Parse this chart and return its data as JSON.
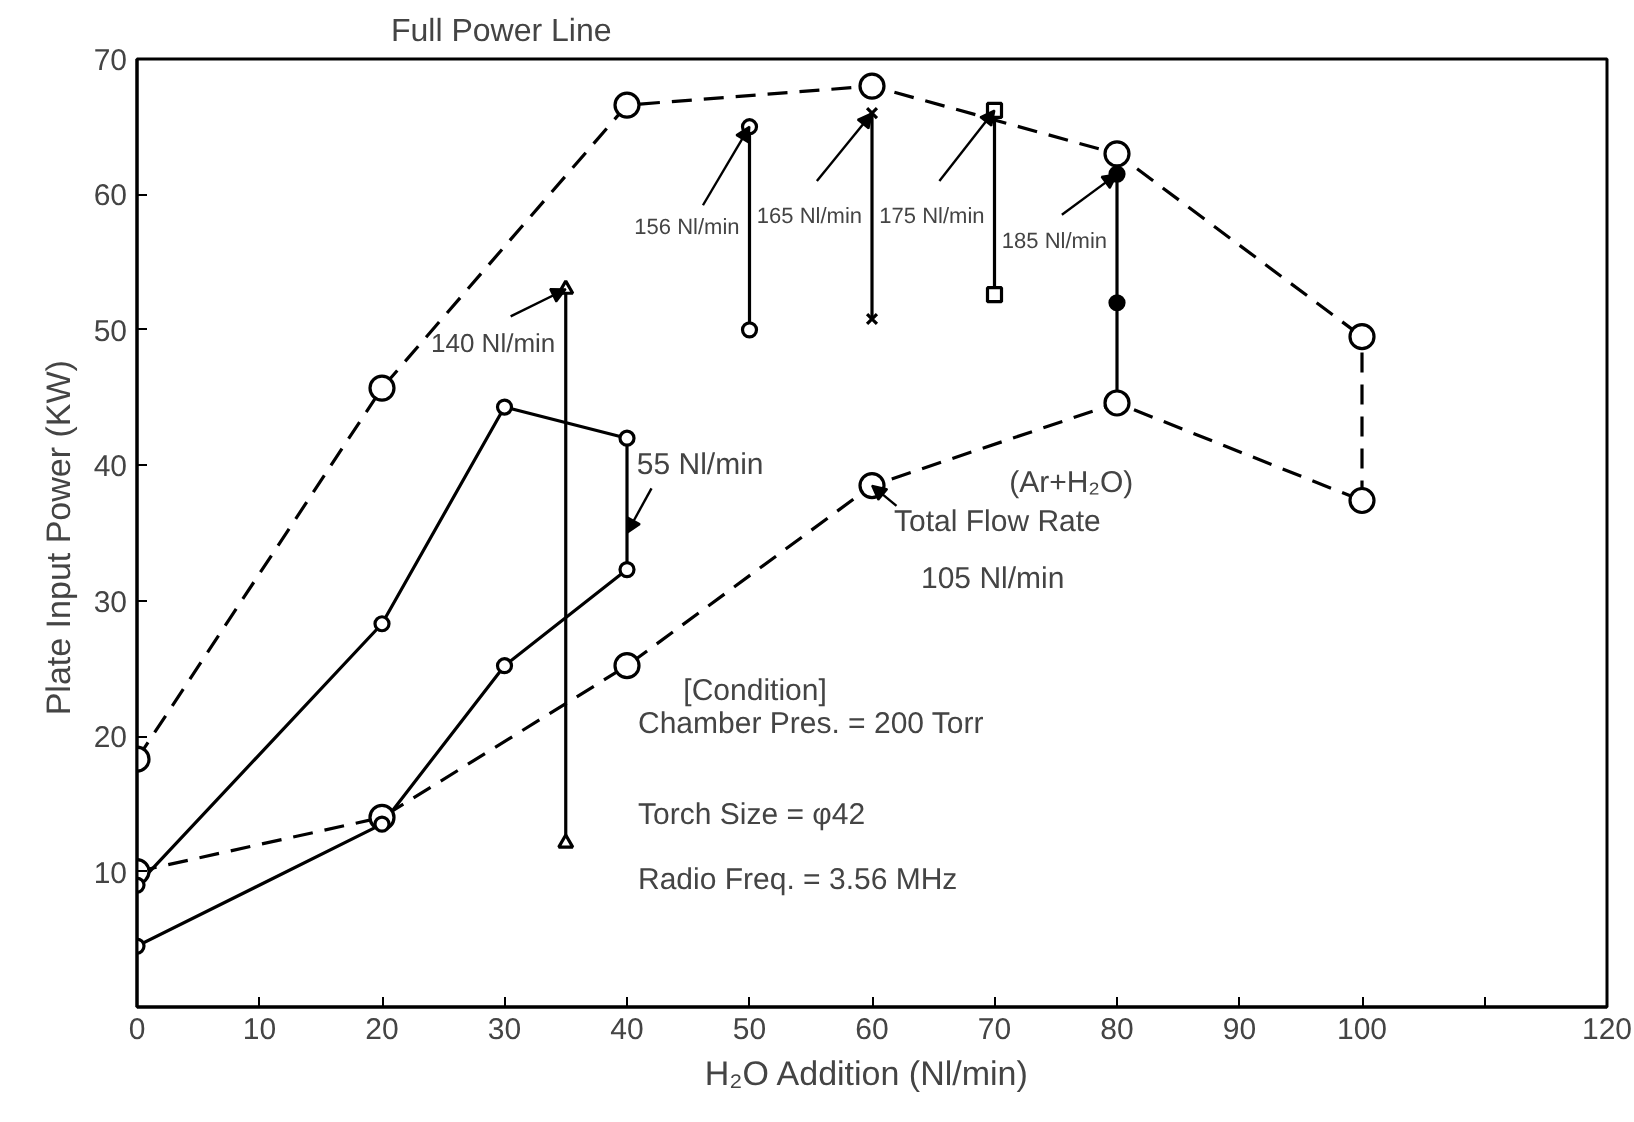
{
  "chart_data": {
    "type": "line",
    "xlabel": "H₂O Addition  (Nl/min)",
    "ylabel": "Plate Input Power  (KW)",
    "xlim": [
      0,
      120
    ],
    "ylim": [
      0,
      70
    ],
    "xticks": [
      0,
      10,
      20,
      30,
      40,
      50,
      60,
      70,
      80,
      90,
      100,
      {
        "value": 110,
        "label": null
      },
      120
    ],
    "yticks": [
      10,
      20,
      30,
      40,
      50,
      60,
      70
    ],
    "grid": false,
    "series": [
      {
        "name": "Full Power Line",
        "color": "#000000",
        "x": [
          0,
          20,
          40,
          60,
          80,
          100
        ],
        "values": [
          18.3,
          45.7,
          66.6,
          68,
          63,
          49.5
        ],
        "line_style": "dashed",
        "marker": "circle"
      },
      {
        "color": "#000000",
        "x": [
          0,
          20,
          40,
          60,
          80,
          100
        ],
        "values": [
          10,
          14,
          25.2,
          38.5,
          44.6,
          37.4
        ],
        "line_style": "dashed",
        "marker": "circle"
      },
      {
        "color": "#000000",
        "x": [
          0,
          20,
          30,
          40
        ],
        "values": [
          9,
          28.3,
          44.3,
          42
        ],
        "line_style": "solid",
        "marker": "circle"
      },
      {
        "color": "#000000",
        "x": [
          0,
          20,
          30,
          40
        ],
        "values": [
          4.5,
          13.5,
          25.2,
          32.3
        ],
        "line_style": "solid",
        "marker": "circle"
      },
      {
        "color": "#000000",
        "x": [
          40,
          40
        ],
        "values": [
          42,
          32.3
        ],
        "line_style": "solid",
        "marker": "none"
      },
      {
        "color": "#000000",
        "x": [
          35,
          35
        ],
        "values": [
          12.1,
          53
        ],
        "line_style": "solid",
        "marker": "triangle"
      },
      {
        "color": "#000000",
        "x": [
          50,
          50
        ],
        "values": [
          50,
          65
        ],
        "line_style": "solid",
        "marker": "circle"
      },
      {
        "color": "#000000",
        "x": [
          60,
          60
        ],
        "values": [
          50.8,
          66
        ],
        "line_style": "solid",
        "marker": "cross"
      },
      {
        "color": "#000000",
        "x": [
          70,
          70
        ],
        "values": [
          52.6,
          66.2
        ],
        "line_style": "solid",
        "marker": "square"
      },
      {
        "color": "#000000",
        "x": [
          80,
          80
        ],
        "values": [
          44.6,
          63
        ],
        "line_style": "solid",
        "marker": "none"
      },
      {
        "type": "scatter",
        "color": "#000000",
        "x": [
          80,
          80
        ],
        "values": [
          52,
          61.5
        ],
        "marker": "circle"
      },
      {
        "color": "#000000",
        "x": [
          100,
          100
        ],
        "values": [
          37.4,
          49.5
        ],
        "line_style": "dashed",
        "marker": "none"
      }
    ],
    "annotations": [
      {
        "text": "140 Nl/min",
        "x": 35,
        "y": 53
      },
      {
        "text": "156 Nl/min",
        "x": 50,
        "y": 65
      },
      {
        "text": "165 Nl/min",
        "x": 60,
        "y": 66
      },
      {
        "text": "175 Nl/min",
        "x": 70,
        "y": 66.2
      },
      {
        "text": "185 Nl/min",
        "x": 80,
        "y": 61.5
      },
      {
        "text": "55 Nl/min",
        "x": 40,
        "y": 35
      },
      "(Ar+H₂O)",
      {
        "text": "Total Flow Rate",
        "x": 60,
        "y": 38.5
      },
      "105 Nl/min",
      "[Condition]",
      "Chamber Pres. = 200 Torr",
      "Torch Size = φ42",
      "Radio Freq. = 3.56 MHz"
    ]
  }
}
